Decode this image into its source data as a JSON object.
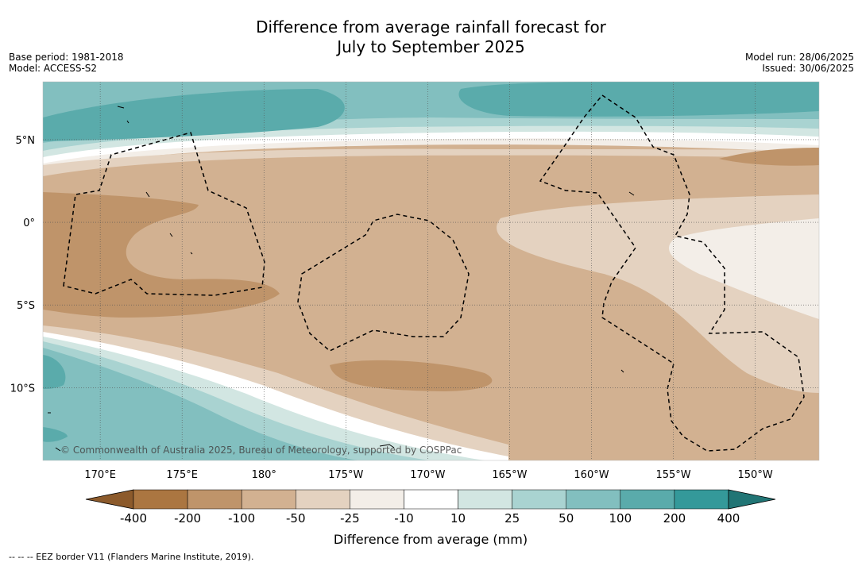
{
  "header": {
    "title_line1": "Difference from average rainfall forecast for",
    "title_line2": "July to September 2025"
  },
  "meta": {
    "base_period": "Base period: 1981-2018",
    "model": "Model: ACCESS-S2",
    "model_run": "Model run: 28/06/2025",
    "issued": "Issued: 30/06/2025"
  },
  "map": {
    "lat_labels": [
      "5°N",
      "0°",
      "5°S",
      "10°S"
    ],
    "lat_values": [
      5,
      0,
      -5,
      -10
    ],
    "lon_labels": [
      "170°E",
      "175°E",
      "180°",
      "175°W",
      "170°W",
      "165°W",
      "160°W",
      "155°W",
      "150°W"
    ],
    "lon_values": [
      170,
      175,
      180,
      185,
      190,
      195,
      200,
      205,
      210
    ],
    "extent": {
      "lon_min": 166.5,
      "lon_max": 213.9,
      "lat_min": -14.4,
      "lat_max": 8.5
    },
    "copyright": "© Commonwealth of Australia 2025, Bureau of Meteorology, supported by COSPPac"
  },
  "legend": {
    "tick_labels": [
      "-400",
      "-200",
      "-100",
      "-50",
      "-25",
      "-10",
      "10",
      "25",
      "50",
      "100",
      "200",
      "400"
    ],
    "colors": [
      "#8c5a2b",
      "#ab7641",
      "#bf946a",
      "#d2b191",
      "#e4d2c0",
      "#f3eee8",
      "#ffffff",
      "#d2e6e2",
      "#a9d3d1",
      "#82bfbf",
      "#5aabab",
      "#34999a",
      "#217575"
    ],
    "label": "Difference from average (mm)"
  },
  "footnote": "--  --  -- EEZ border V11 (Flanders Marine Institute, 2019)."
}
